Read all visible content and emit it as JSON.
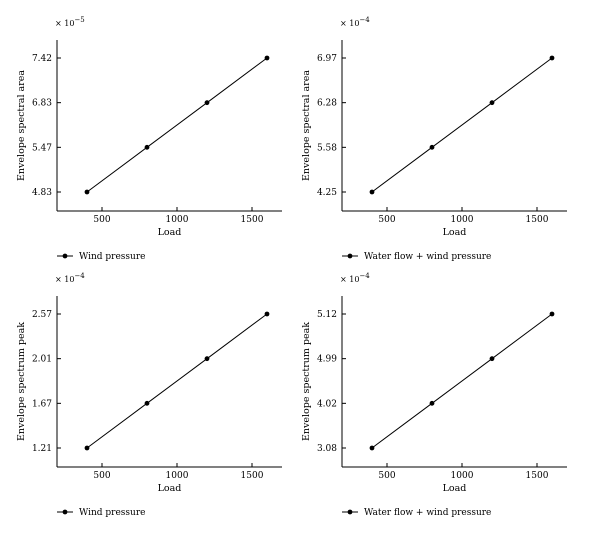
{
  "colors": {
    "line": "#000000",
    "marker": "#000000",
    "axis": "#000000"
  },
  "chart_data": [
    {
      "type": "line",
      "multiplier": "× 10",
      "multiplier_exp": "−5",
      "xlabel": "Load",
      "ylabel": "Envelope spectral area",
      "x": [
        400,
        800,
        1200,
        1600
      ],
      "xticks": [
        "500",
        "1000",
        "1500"
      ],
      "xtick_values": [
        500,
        1000,
        1500
      ],
      "yticks": [
        "4.83",
        "5.47",
        "6.83",
        "7.42"
      ],
      "values": [
        4.83,
        5.47,
        6.83,
        7.42
      ],
      "legend": "Wind pressure",
      "legend_position": "bottom-left"
    },
    {
      "type": "line",
      "multiplier": "× 10",
      "multiplier_exp": "−4",
      "xlabel": "Load",
      "ylabel": "Envelope spectral area",
      "x": [
        400,
        800,
        1200,
        1600
      ],
      "xticks": [
        "500",
        "1000",
        "1500"
      ],
      "xtick_values": [
        500,
        1000,
        1500
      ],
      "yticks": [
        "4.25",
        "5.58",
        "6.28",
        "6.97"
      ],
      "values": [
        4.25,
        5.58,
        6.28,
        6.97
      ],
      "legend": "Water flow + wind pressure",
      "legend_position": "bottom-left"
    },
    {
      "type": "line",
      "multiplier": "× 10",
      "multiplier_exp": "−4",
      "xlabel": "Load",
      "ylabel": "Envelope spectrum peak",
      "x": [
        400,
        800,
        1200,
        1600
      ],
      "xticks": [
        "500",
        "1000",
        "1500"
      ],
      "xtick_values": [
        500,
        1000,
        1500
      ],
      "yticks": [
        "1.21",
        "1.67",
        "2.01",
        "2.57"
      ],
      "values": [
        1.21,
        1.67,
        2.01,
        2.57
      ],
      "legend": "Wind pressure",
      "legend_position": "bottom-left"
    },
    {
      "type": "line",
      "multiplier": "× 10",
      "multiplier_exp": "−4",
      "xlabel": "Load",
      "ylabel": "Envelope spectrum peak",
      "x": [
        400,
        800,
        1200,
        1600
      ],
      "xticks": [
        "500",
        "1000",
        "1500"
      ],
      "xtick_values": [
        500,
        1000,
        1500
      ],
      "yticks": [
        "3.08",
        "4.02",
        "4.99",
        "5.12"
      ],
      "values": [
        3.08,
        4.02,
        4.99,
        5.12
      ],
      "legend": "Water flow + wind pressure",
      "legend_position": "bottom-left"
    }
  ]
}
